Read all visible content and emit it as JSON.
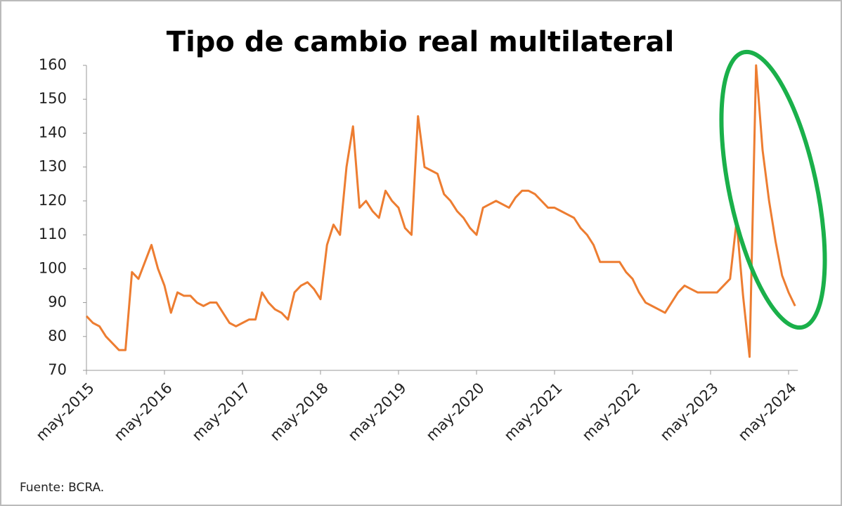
{
  "chart_data": {
    "type": "line",
    "title": "Tipo de cambio real multilateral",
    "x": [
      "2015-05",
      "2015-06",
      "2015-07",
      "2015-08",
      "2015-09",
      "2015-10",
      "2015-11",
      "2015-12",
      "2016-01",
      "2016-02",
      "2016-03",
      "2016-04",
      "2016-05",
      "2016-06",
      "2016-07",
      "2016-08",
      "2016-09",
      "2016-10",
      "2016-11",
      "2016-12",
      "2017-01",
      "2017-02",
      "2017-03",
      "2017-04",
      "2017-05",
      "2017-06",
      "2017-07",
      "2017-08",
      "2017-09",
      "2017-10",
      "2017-11",
      "2017-12",
      "2018-01",
      "2018-02",
      "2018-03",
      "2018-04",
      "2018-05",
      "2018-06",
      "2018-07",
      "2018-08",
      "2018-09",
      "2018-10",
      "2018-11",
      "2018-12",
      "2019-01",
      "2019-02",
      "2019-03",
      "2019-04",
      "2019-05",
      "2019-06",
      "2019-07",
      "2019-08",
      "2019-09",
      "2019-10",
      "2019-11",
      "2019-12",
      "2020-01",
      "2020-02",
      "2020-03",
      "2020-04",
      "2020-05",
      "2020-06",
      "2020-07",
      "2020-08",
      "2020-09",
      "2020-10",
      "2020-11",
      "2020-12",
      "2021-01",
      "2021-02",
      "2021-03",
      "2021-04",
      "2021-05",
      "2021-06",
      "2021-07",
      "2021-08",
      "2021-09",
      "2021-10",
      "2021-11",
      "2021-12",
      "2022-01",
      "2022-02",
      "2022-03",
      "2022-04",
      "2022-05",
      "2022-06",
      "2022-07",
      "2022-08",
      "2022-09",
      "2022-10",
      "2022-11",
      "2022-12",
      "2023-01",
      "2023-02",
      "2023-03",
      "2023-04",
      "2023-05",
      "2023-06",
      "2023-07",
      "2023-08",
      "2023-09",
      "2023-10",
      "2023-11",
      "2023-12",
      "2024-01",
      "2024-02",
      "2024-03",
      "2024-04",
      "2024-05",
      "2024-06"
    ],
    "series": [
      {
        "color": "#ed7d31",
        "values": [
          86,
          84,
          83,
          80,
          78,
          76,
          76,
          99,
          97,
          102,
          107,
          100,
          95,
          87,
          93,
          92,
          92,
          90,
          89,
          90,
          90,
          87,
          84,
          83,
          84,
          85,
          85,
          93,
          90,
          88,
          87,
          85,
          93,
          95,
          96,
          94,
          91,
          107,
          113,
          110,
          130,
          142,
          118,
          120,
          117,
          115,
          123,
          120,
          118,
          112,
          110,
          145,
          130,
          129,
          128,
          122,
          120,
          117,
          115,
          112,
          110,
          118,
          119,
          120,
          119,
          118,
          121,
          123,
          123,
          122,
          120,
          118,
          118,
          117,
          116,
          115,
          112,
          110,
          107,
          102,
          102,
          102,
          102,
          99,
          97,
          93,
          90,
          89,
          88,
          87,
          90,
          93,
          95,
          94,
          93,
          93,
          93,
          93,
          95,
          97,
          114,
          92,
          74,
          160,
          135,
          120,
          108,
          98,
          93,
          89
        ]
      }
    ],
    "ylim": [
      70,
      160
    ],
    "yticks": [
      70,
      80,
      90,
      100,
      110,
      120,
      130,
      140,
      150,
      160
    ],
    "xticks": [
      {
        "value": "2015-05",
        "label": "may-2015"
      },
      {
        "value": "2016-05",
        "label": "may-2016"
      },
      {
        "value": "2017-05",
        "label": "may-2017"
      },
      {
        "value": "2018-05",
        "label": "may-2018"
      },
      {
        "value": "2019-05",
        "label": "may-2019"
      },
      {
        "value": "2020-05",
        "label": "may-2020"
      },
      {
        "value": "2021-05",
        "label": "may-2021"
      },
      {
        "value": "2022-05",
        "label": "may-2022"
      },
      {
        "value": "2023-05",
        "label": "may-2023"
      },
      {
        "value": "2024-05",
        "label": "may-2024"
      }
    ],
    "grid": false,
    "source": "Fuente: BCRA."
  }
}
